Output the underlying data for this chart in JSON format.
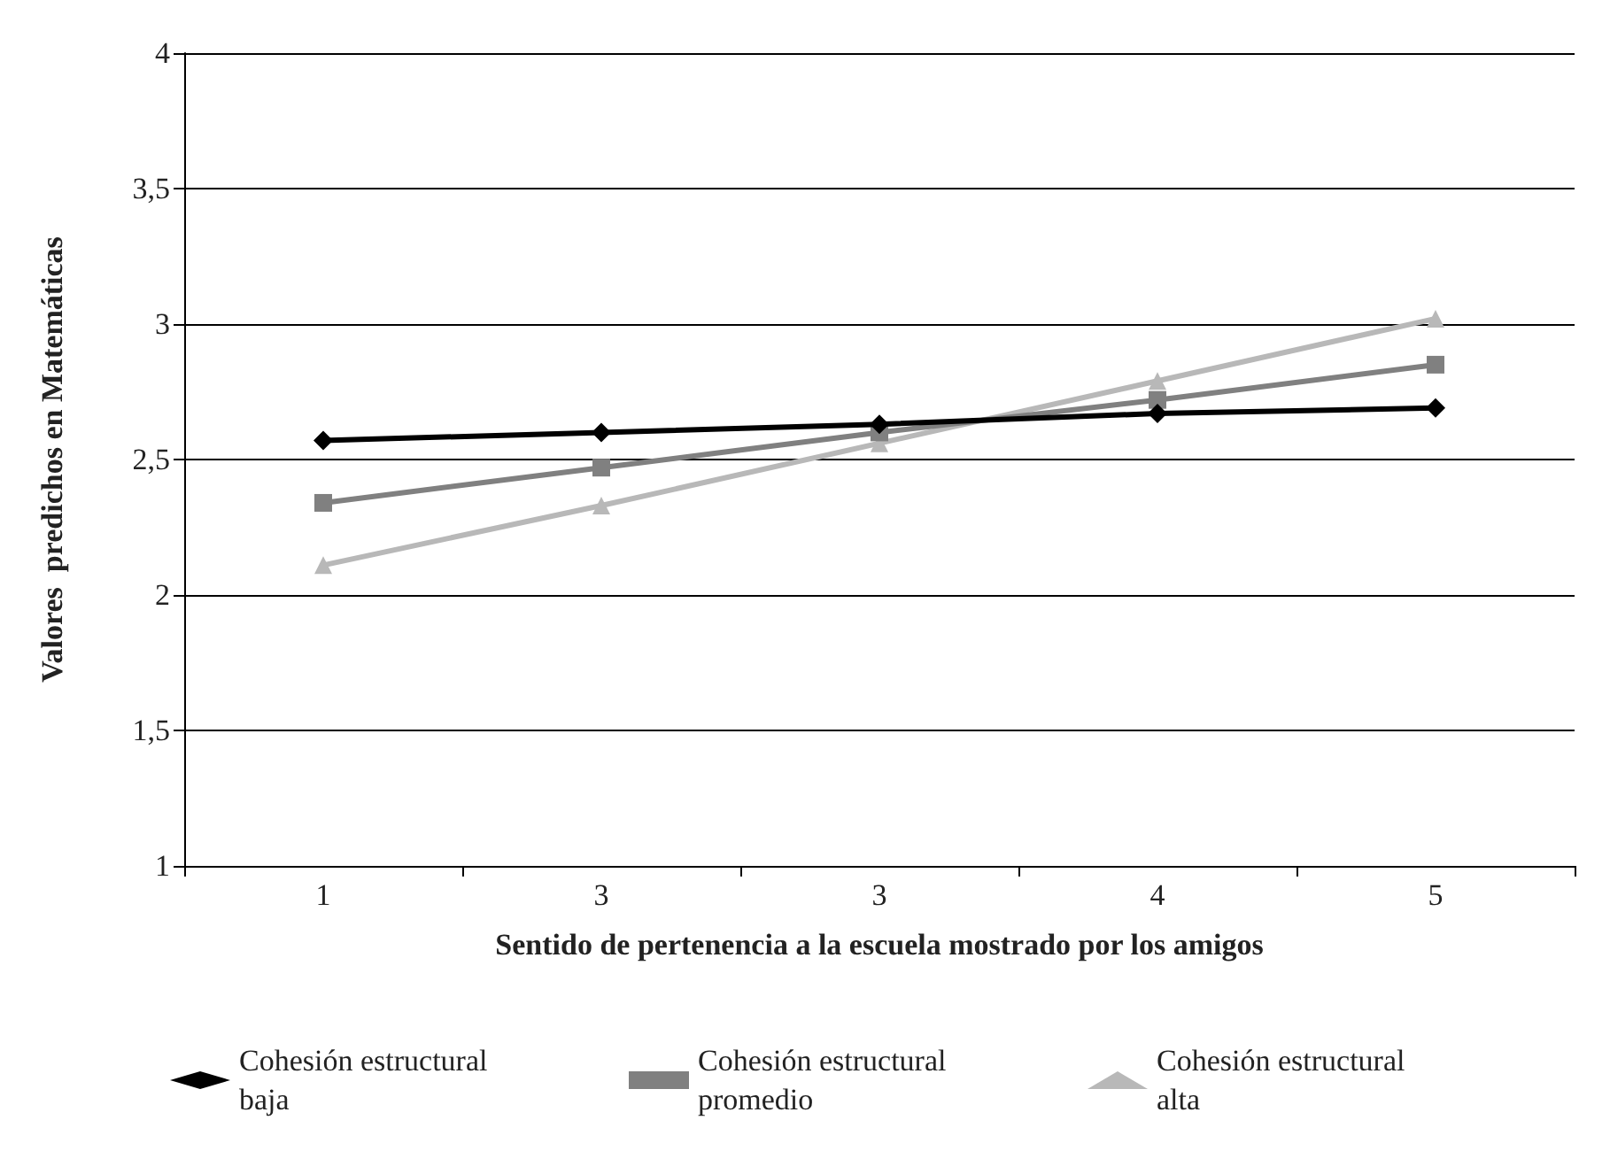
{
  "chart_data": {
    "type": "line",
    "xlabel": "Sentido de pertenencia a la escuela mostrado por los amigos",
    "ylabel": "Valores  predichos en Matemáticas",
    "categories": [
      "1",
      "3",
      "3",
      "4",
      "5"
    ],
    "series": [
      {
        "name": "Cohesión estructural baja",
        "color": "#000000",
        "marker": "diamond",
        "values": [
          2.57,
          2.6,
          2.63,
          2.67,
          2.69
        ]
      },
      {
        "name": "Cohesión estructural promedio",
        "color": "#808080",
        "marker": "square",
        "values": [
          2.34,
          2.47,
          2.6,
          2.72,
          2.85
        ]
      },
      {
        "name": "Cohesión estructural alta",
        "color": "#b8b8b8",
        "marker": "triangle",
        "values": [
          2.11,
          2.33,
          2.56,
          2.79,
          3.02
        ]
      }
    ],
    "ylim": [
      1,
      4
    ],
    "yticks": [
      {
        "value": 1,
        "label": "1"
      },
      {
        "value": 1.5,
        "label": "1,5"
      },
      {
        "value": 2,
        "label": "2"
      },
      {
        "value": 2.5,
        "label": "2,5"
      },
      {
        "value": 3,
        "label": "3"
      },
      {
        "value": 3.5,
        "label": "3,5"
      },
      {
        "value": 4,
        "label": "4"
      }
    ],
    "grid": "y",
    "legend": "bottom",
    "line_style": "solid"
  }
}
